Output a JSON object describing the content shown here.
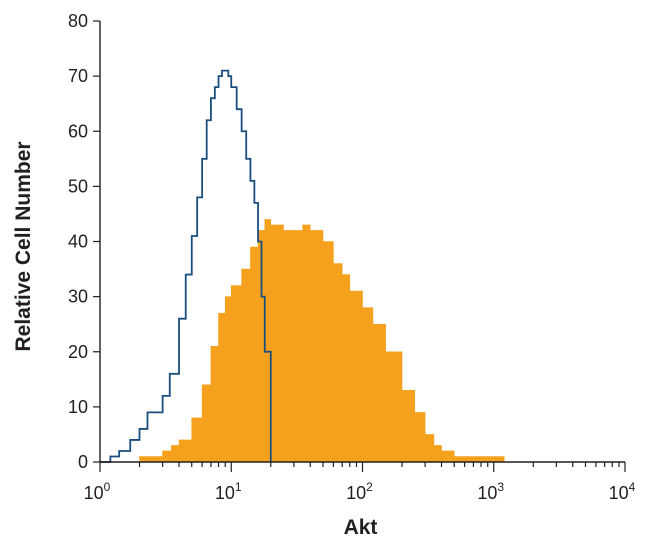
{
  "chart_data": {
    "type": "area",
    "xlabel": "Akt",
    "ylabel": "Relative Cell Number",
    "x_scale": "log",
    "xlim": [
      1,
      10000
    ],
    "ylim": [
      0,
      80
    ],
    "x_ticks": [
      {
        "base": "10",
        "exp": "0",
        "value": 1
      },
      {
        "base": "10",
        "exp": "1",
        "value": 10
      },
      {
        "base": "10",
        "exp": "2",
        "value": 100
      },
      {
        "base": "10",
        "exp": "3",
        "value": 1000
      },
      {
        "base": "10",
        "exp": "4",
        "value": 10000
      }
    ],
    "y_ticks": [
      "0",
      "10",
      "20",
      "30",
      "40",
      "50",
      "60",
      "70",
      "80"
    ],
    "grid": false,
    "series": [
      {
        "style": "filled",
        "color": "#f5a11d",
        "x": [
          1.8,
          2.0,
          2.5,
          3.0,
          3.5,
          4.0,
          5.0,
          6.0,
          7.0,
          8.0,
          9.0,
          10.0,
          12.0,
          14.0,
          16.0,
          18.0,
          20.0,
          25.0,
          30.0,
          35.0,
          40.0,
          50.0,
          60.0,
          70.0,
          80.0,
          100.0,
          120.0,
          150.0,
          200.0,
          250.0,
          300.0,
          350.0,
          400.0,
          500.0,
          600.0,
          700.0,
          800.0,
          1000.0,
          1200.0
        ],
        "y": [
          0,
          1,
          1,
          2,
          3,
          4,
          8,
          14,
          21,
          27,
          30,
          32,
          35,
          39,
          42,
          44,
          43,
          42,
          42,
          43,
          42,
          40,
          36,
          34,
          31,
          28,
          25,
          20,
          13,
          9,
          5,
          3,
          2,
          1,
          1,
          1,
          1,
          1,
          0
        ]
      },
      {
        "style": "outline",
        "color": "#1a4e7e",
        "x": [
          1.0,
          1.1,
          1.2,
          1.3,
          1.4,
          1.5,
          1.7,
          2.0,
          2.3,
          2.6,
          3.0,
          3.4,
          4.0,
          4.5,
          5.0,
          5.5,
          6.0,
          6.5,
          7.0,
          7.5,
          8.0,
          8.5,
          9.0,
          9.5,
          10.0,
          11.0,
          12.0,
          13.0,
          14.0,
          15.0,
          16.0,
          17.0,
          18.0,
          20.0
        ],
        "y": [
          0,
          0,
          1,
          1,
          2,
          2,
          4,
          6,
          9,
          9,
          12,
          16,
          26,
          34,
          41,
          48,
          55,
          62,
          66,
          68,
          70,
          71,
          71,
          70,
          68,
          64,
          60,
          55,
          51,
          47,
          40,
          30,
          20,
          0
        ]
      }
    ]
  }
}
